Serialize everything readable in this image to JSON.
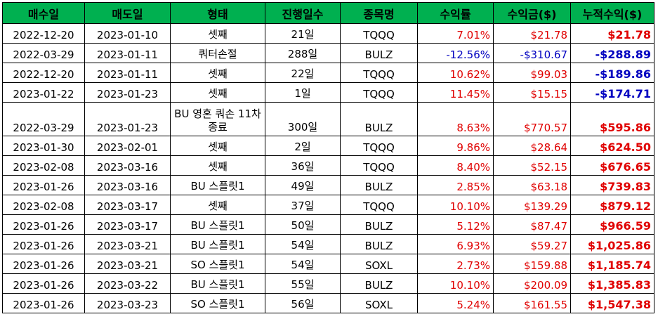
{
  "headers": {
    "buy_date": "매수일",
    "sell_date": "매도일",
    "type": "형태",
    "days": "진행일수",
    "ticker": "종목명",
    "return_rate": "수익률",
    "profit": "수익금($)",
    "cumulative": "누적수익($)"
  },
  "rows": [
    {
      "buy": "2022-12-20",
      "sell": "2023-01-10",
      "type": "셋째",
      "days": "21일",
      "ticker": "TQQQ",
      "rate": "7.01%",
      "profit": "$21.78",
      "cum": "$21.78"
    },
    {
      "buy": "2022-03-29",
      "sell": "2023-01-11",
      "type": "쿼터손절",
      "days": "288일",
      "ticker": "BULZ",
      "rate": "-12.56%",
      "profit": "-$310.67",
      "cum": "-$288.89"
    },
    {
      "buy": "2022-12-20",
      "sell": "2023-01-11",
      "type": "셋째",
      "days": "22일",
      "ticker": "TQQQ",
      "rate": "10.62%",
      "profit": "$99.03",
      "cum": "-$189.86"
    },
    {
      "buy": "2023-01-22",
      "sell": "2023-01-23",
      "type": "셋째",
      "days": "1일",
      "ticker": "TQQQ",
      "rate": "11.45%",
      "profit": "$15.15",
      "cum": "-$174.71"
    },
    {
      "buy": "2022-03-29",
      "sell": "2023-01-23",
      "type": "BU 영혼 쿼손 11차 종료",
      "days": "300일",
      "ticker": "BULZ",
      "rate": "8.63%",
      "profit": "$770.57",
      "cum": "$595.86"
    },
    {
      "buy": "2023-01-30",
      "sell": "2023-02-01",
      "type": "셋째",
      "days": "2일",
      "ticker": "TQQQ",
      "rate": "9.86%",
      "profit": "$28.64",
      "cum": "$624.50"
    },
    {
      "buy": "2023-02-08",
      "sell": "2023-03-16",
      "type": "셋째",
      "days": "36일",
      "ticker": "TQQQ",
      "rate": "8.40%",
      "profit": "$52.15",
      "cum": "$676.65"
    },
    {
      "buy": "2023-01-26",
      "sell": "2023-03-16",
      "type": "BU 스플릿1",
      "days": "49일",
      "ticker": "BULZ",
      "rate": "2.85%",
      "profit": "$63.18",
      "cum": "$739.83"
    },
    {
      "buy": "2023-02-08",
      "sell": "2023-03-17",
      "type": "셋째",
      "days": "37일",
      "ticker": "TQQQ",
      "rate": "10.10%",
      "profit": "$139.29",
      "cum": "$879.12"
    },
    {
      "buy": "2023-01-26",
      "sell": "2023-03-17",
      "type": "BU 스플릿1",
      "days": "50일",
      "ticker": "BULZ",
      "rate": "5.12%",
      "profit": "$87.47",
      "cum": "$966.59"
    },
    {
      "buy": "2023-01-26",
      "sell": "2023-03-21",
      "type": "BU 스플릿1",
      "days": "54일",
      "ticker": "BULZ",
      "rate": "6.93%",
      "profit": "$59.27",
      "cum": "$1,025.86"
    },
    {
      "buy": "2023-01-26",
      "sell": "2023-03-21",
      "type": "SO 스플릿1",
      "days": "54일",
      "ticker": "SOXL",
      "rate": "2.73%",
      "profit": "$159.88",
      "cum": "$1,185.74"
    },
    {
      "buy": "2023-01-26",
      "sell": "2023-03-22",
      "type": "BU 스플릿1",
      "days": "55일",
      "ticker": "BULZ",
      "rate": "10.10%",
      "profit": "$200.09",
      "cum": "$1,385.83"
    },
    {
      "buy": "2023-01-26",
      "sell": "2023-03-23",
      "type": "SO 스플릿1",
      "days": "56일",
      "ticker": "SOXL",
      "rate": "5.24%",
      "profit": "$161.55",
      "cum": "$1,547.38"
    }
  ],
  "colors": {
    "header_bg": "#00b050",
    "positive": "#e00000",
    "negative": "#0000c0"
  }
}
